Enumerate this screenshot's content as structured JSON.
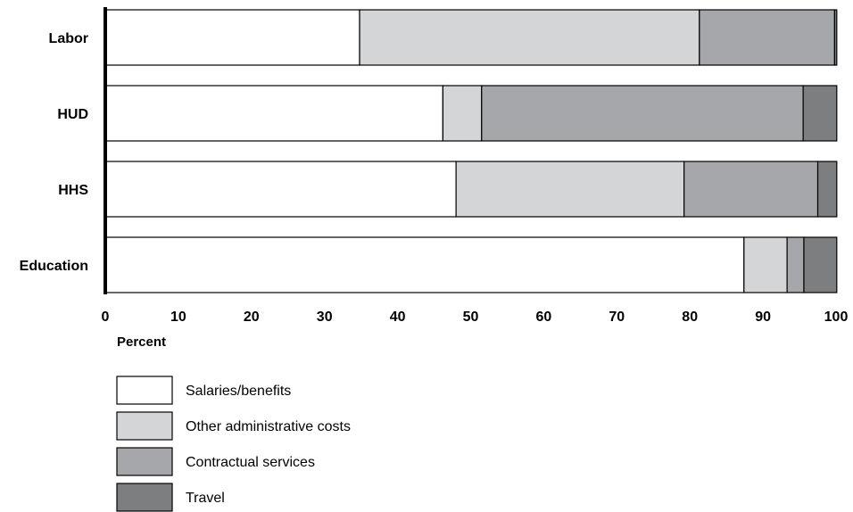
{
  "chart_data": {
    "type": "bar",
    "orientation": "horizontal",
    "stacked": true,
    "categories": [
      "Labor",
      "HUD",
      "HHS",
      "Education"
    ],
    "series": [
      {
        "name": "Salaries/benefits",
        "color": "#ffffff",
        "values": [
          34.8,
          46.2,
          48.0,
          87.4
        ]
      },
      {
        "name": "Other administrative costs",
        "color": "#d4d5d6",
        "values": [
          46.5,
          5.3,
          31.2,
          5.9
        ]
      },
      {
        "name": "Contractual services",
        "color": "#a6a7aa",
        "values": [
          18.5,
          44.0,
          18.3,
          2.3
        ]
      },
      {
        "name": "Travel",
        "color": "#7d7e80",
        "values": [
          0.3,
          4.6,
          2.6,
          4.5
        ]
      }
    ],
    "xlabel": "Percent",
    "ylabel": "",
    "xlim": [
      0,
      100
    ],
    "xticks": [
      0,
      10,
      20,
      30,
      40,
      50,
      60,
      70,
      80,
      90,
      100
    ],
    "grid": false,
    "legend_position": "bottom-left"
  }
}
